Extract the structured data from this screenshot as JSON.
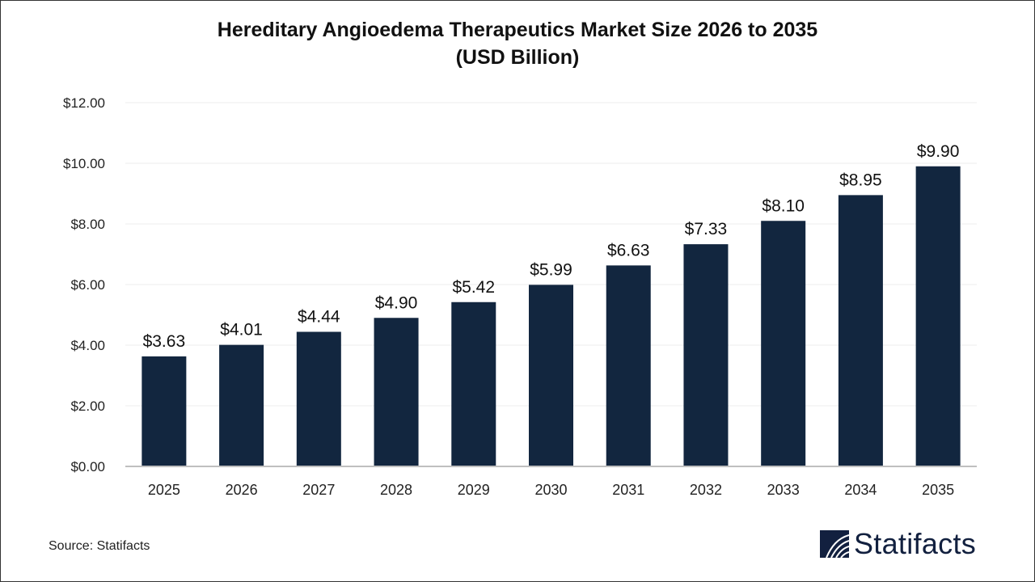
{
  "chart_data": {
    "type": "bar",
    "title_line1": "Hereditary Angioedema Therapeutics Market Size 2026 to 2035",
    "title_line2": "(USD Billion)",
    "categories": [
      "2025",
      "2026",
      "2027",
      "2028",
      "2029",
      "2030",
      "2031",
      "2032",
      "2033",
      "2034",
      "2035"
    ],
    "values": [
      3.63,
      4.01,
      4.44,
      4.9,
      5.42,
      5.99,
      6.63,
      7.33,
      8.1,
      8.95,
      9.9
    ],
    "data_labels": [
      "$3.63",
      "$4.01",
      "$4.44",
      "$4.90",
      "$5.42",
      "$5.99",
      "$6.63",
      "$7.33",
      "$8.10",
      "$8.95",
      "$9.90"
    ],
    "yticks": [
      0,
      2,
      4,
      6,
      8,
      10,
      12
    ],
    "ytick_labels": [
      "$0.00",
      "$2.00",
      "$4.00",
      "$6.00",
      "$8.00",
      "$10.00",
      "$12.00"
    ],
    "ylim": [
      0,
      12
    ],
    "xlabel": "",
    "ylabel": "",
    "grid": true,
    "bar_color": "#12263f"
  },
  "footer": {
    "source": "Source: Statifacts",
    "logo_text": "Statifacts"
  }
}
